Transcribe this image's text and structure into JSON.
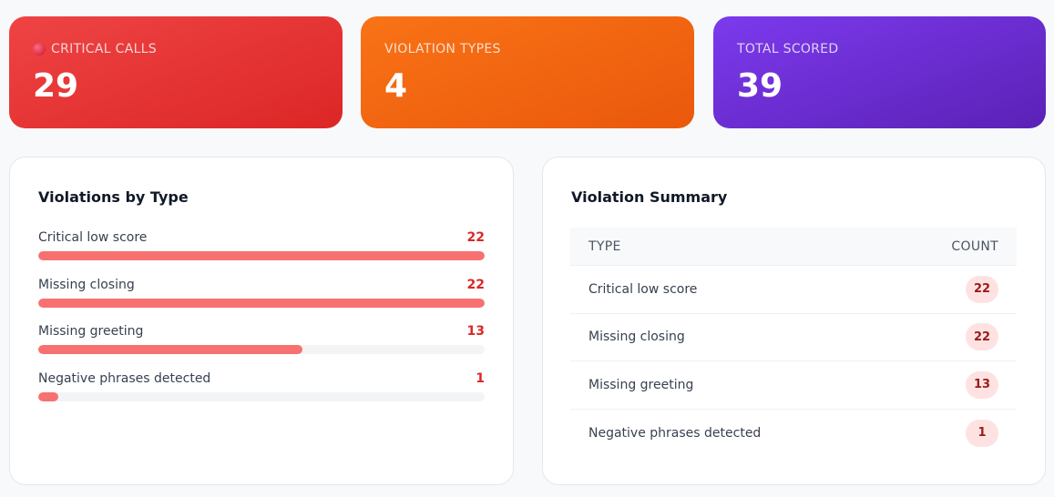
{
  "stats": [
    {
      "label": "CRITICAL CALLS",
      "value": "29",
      "icon": "red-circle-icon",
      "color": "#ef4444"
    },
    {
      "label": "VIOLATION TYPES",
      "value": "4",
      "color": "#f97316"
    },
    {
      "label": "TOTAL SCORED",
      "value": "39",
      "color": "#7c3aed"
    }
  ],
  "violations_by_type": {
    "title": "Violations by Type",
    "max": 22,
    "items": [
      {
        "label": "Critical low score",
        "count": 22
      },
      {
        "label": "Missing closing",
        "count": 22
      },
      {
        "label": "Missing greeting",
        "count": 13
      },
      {
        "label": "Negative phrases detected",
        "count": 1
      }
    ]
  },
  "summary": {
    "title": "Violation Summary",
    "headers": [
      "TYPE",
      "COUNT"
    ],
    "rows": [
      {
        "type": "Critical low score",
        "count": "22"
      },
      {
        "type": "Missing closing",
        "count": "22"
      },
      {
        "type": "Missing greeting",
        "count": "13"
      },
      {
        "type": "Negative phrases detected",
        "count": "1"
      }
    ]
  }
}
